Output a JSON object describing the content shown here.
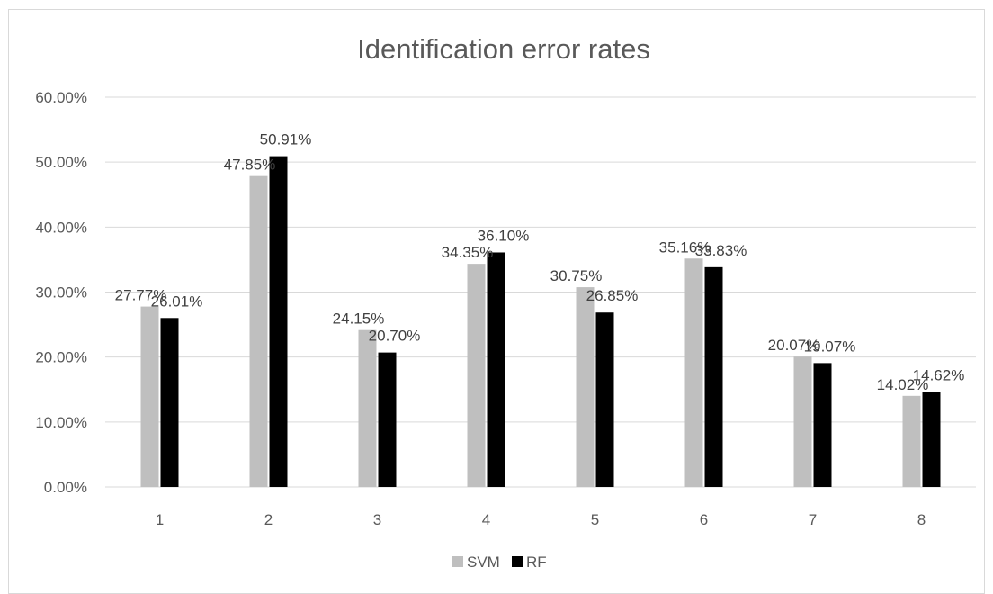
{
  "chart_data": {
    "type": "bar",
    "title": "Identification error rates",
    "xlabel": "",
    "ylabel": "",
    "categories": [
      "1",
      "2",
      "3",
      "4",
      "5",
      "6",
      "7",
      "8"
    ],
    "series": [
      {
        "name": "SVM",
        "color": "#bfbfbf",
        "values": [
          27.77,
          47.85,
          24.15,
          34.35,
          30.75,
          35.16,
          20.07,
          14.02
        ],
        "labels": [
          "27.77%",
          "47.85%",
          "24.15%",
          "34.35%",
          "30.75%",
          "35.16%",
          "20.07%",
          "14.02%"
        ]
      },
      {
        "name": "RF",
        "color": "#000000",
        "values": [
          26.01,
          50.91,
          20.7,
          36.1,
          26.85,
          33.83,
          19.07,
          14.62
        ],
        "labels": [
          "26.01%",
          "50.91%",
          "20.70%",
          "36.10%",
          "26.85%",
          "33.83%",
          "19.07%",
          "14.62%"
        ]
      }
    ],
    "ylim": [
      0,
      60
    ],
    "yticks": [
      0,
      10,
      20,
      30,
      40,
      50,
      60
    ],
    "ytick_labels": [
      "0.00%",
      "10.00%",
      "20.00%",
      "30.00%",
      "40.00%",
      "50.00%",
      "60.00%"
    ],
    "grid": true,
    "legend_position": "bottom"
  }
}
